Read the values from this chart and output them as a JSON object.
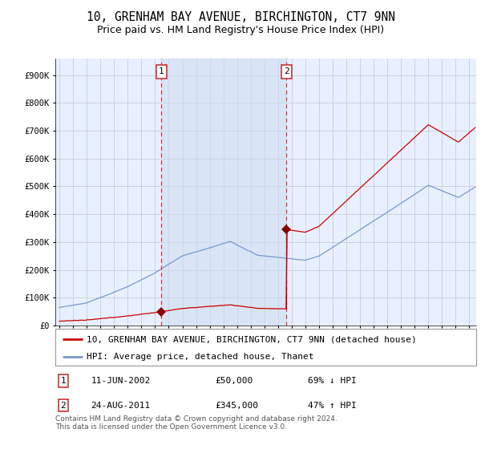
{
  "title": "10, GRENHAM BAY AVENUE, BIRCHINGTON, CT7 9NN",
  "subtitle": "Price paid vs. HM Land Registry's House Price Index (HPI)",
  "background_color": "#ffffff",
  "plot_bg_color": "#e8f0ff",
  "grid_color": "#c8ccd8",
  "legend_label_red": "10, GRENHAM BAY AVENUE, BIRCHINGTON, CT7 9NN (detached house)",
  "legend_label_blue": "HPI: Average price, detached house, Thanet",
  "footnote": "Contains HM Land Registry data © Crown copyright and database right 2024.\nThis data is licensed under the Open Government Licence v3.0.",
  "transaction1_date": "11-JUN-2002",
  "transaction1_price": 50000,
  "transaction1_label": "£50,000",
  "transaction1_pct": "69% ↓ HPI",
  "transaction2_date": "24-AUG-2011",
  "transaction2_price": 345000,
  "transaction2_label": "£345,000",
  "transaction2_pct": "47% ↑ HPI",
  "xmin": 1994.7,
  "xmax": 2025.5,
  "ymin": 0,
  "ymax": 960000,
  "yticks": [
    0,
    100000,
    200000,
    300000,
    400000,
    500000,
    600000,
    700000,
    800000,
    900000
  ],
  "ytick_labels": [
    "£0",
    "£100K",
    "£200K",
    "£300K",
    "£400K",
    "£500K",
    "£600K",
    "£700K",
    "£800K",
    "£900K"
  ],
  "red_color": "#cc0000",
  "blue_color": "#7799cc",
  "dashed_color": "#dd3333",
  "shade_color": "#ccdcf0",
  "marker_color": "#880000",
  "title_fontsize": 10.5,
  "subtitle_fontsize": 9,
  "tick_fontsize": 7.5,
  "legend_fontsize": 8
}
